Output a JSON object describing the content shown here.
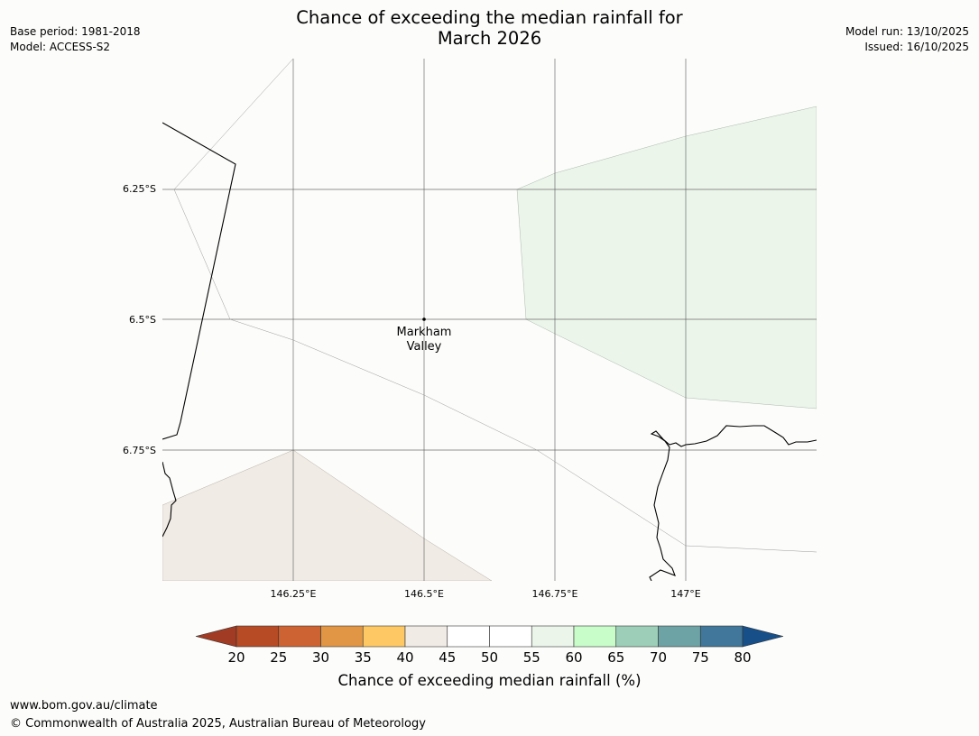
{
  "title": {
    "line1": "Chance of exceeding the median rainfall for",
    "line2": "March 2026"
  },
  "meta": {
    "base_period": "Base period: 1981-2018",
    "model": "Model: ACCESS-S2",
    "model_run": "Model run: 13/10/2025",
    "issued": "Issued: 16/10/2025"
  },
  "map": {
    "lat_labels": [
      "6.25°S",
      "6.5°S",
      "6.75°S"
    ],
    "lon_labels": [
      "146.25°E",
      "146.5°E",
      "146.75°E",
      "147°E"
    ],
    "place": {
      "name_line1": "Markham",
      "name_line2": "Valley"
    },
    "region_colors": {
      "green_region": "#ebf5ea",
      "tan_region": "#f1ebe5"
    }
  },
  "colorbar": {
    "ticks": [
      "20",
      "25",
      "30",
      "35",
      "40",
      "45",
      "50",
      "55",
      "60",
      "65",
      "70",
      "75",
      "80"
    ],
    "colors": [
      "#a23b24",
      "#b64b26",
      "#cd6332",
      "#e19645",
      "#fec965",
      "#f1ebe5",
      "#ffffff",
      "#ffffff",
      "#ebf5ea",
      "#c8fcc9",
      "#9dcfb8",
      "#6ea3a5",
      "#41779a",
      "#174f88"
    ],
    "label": "Chance of exceeding median rainfall (%)"
  },
  "footer": {
    "url": "www.bom.gov.au/climate",
    "copyright": "© Commonwealth of Australia 2025, Australian Bureau of Meteorology"
  }
}
